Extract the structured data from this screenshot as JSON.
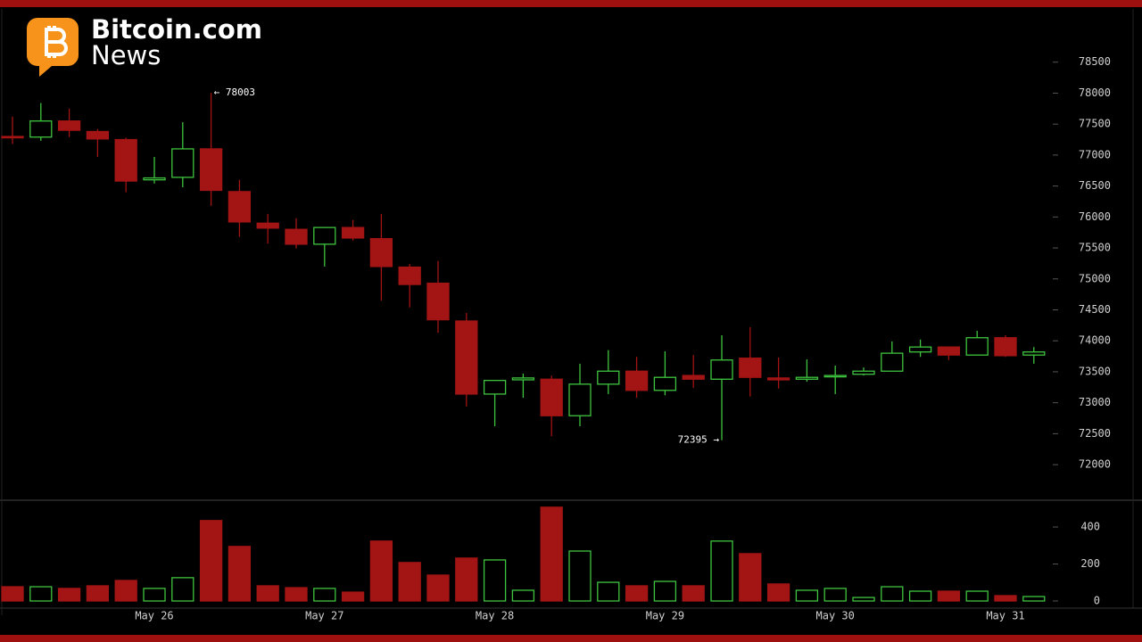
{
  "header": {
    "brand": "Bitcoin.com",
    "sub": "News"
  },
  "chart_data": {
    "type": "candlestick",
    "categories": [
      null,
      null,
      null,
      null,
      null,
      "May 26",
      null,
      null,
      null,
      null,
      null,
      "May 27",
      null,
      null,
      null,
      null,
      null,
      "May 28",
      null,
      null,
      null,
      null,
      null,
      "May 29",
      null,
      null,
      null,
      null,
      null,
      "May 30",
      null,
      null,
      null,
      null,
      null,
      "May 31",
      null
    ],
    "open": [
      77300,
      77290,
      77550,
      77380,
      77250,
      76600,
      76640,
      77100,
      76410,
      75900,
      75800,
      75560,
      75830,
      75650,
      75190,
      74930,
      74320,
      73140,
      73370,
      73380,
      72790,
      73300,
      73510,
      73200,
      73440,
      73380,
      73720,
      73400,
      73380,
      73430,
      73460,
      73510,
      73820,
      73900,
      73770,
      74050,
      73770
    ],
    "high": [
      77620,
      77840,
      77750,
      77420,
      77280,
      76970,
      77530,
      78003,
      76600,
      76050,
      75980,
      75830,
      75950,
      76050,
      75240,
      75290,
      74450,
      73360,
      73470,
      73440,
      73630,
      73850,
      73740,
      73830,
      73770,
      74090,
      74220,
      73730,
      73700,
      73600,
      73570,
      73990,
      74020,
      73900,
      74160,
      74090,
      73900
    ],
    "low": [
      77180,
      77230,
      77290,
      76970,
      76400,
      76540,
      76480,
      76180,
      75680,
      75570,
      75490,
      75200,
      75620,
      74650,
      74540,
      74130,
      72940,
      72620,
      73080,
      72460,
      72620,
      73140,
      73080,
      73120,
      73240,
      72395,
      73100,
      73230,
      73340,
      73140,
      73440,
      73510,
      73740,
      73690,
      73770,
      73740,
      73630
    ],
    "close": [
      77280,
      77550,
      77400,
      77260,
      76580,
      76630,
      77100,
      76430,
      75920,
      75820,
      75560,
      75830,
      75660,
      75200,
      74910,
      74340,
      73140,
      73360,
      73400,
      72790,
      73300,
      73510,
      73200,
      73410,
      73380,
      73690,
      73410,
      73370,
      73410,
      73440,
      73510,
      73800,
      73900,
      73770,
      74050,
      73760,
      73820
    ],
    "volume": [
      77,
      77,
      68,
      82,
      111,
      68,
      126,
      435,
      295,
      82,
      72,
      68,
      48,
      324,
      208,
      140,
      232,
      222,
      58,
      507,
      270,
      101,
      82,
      106,
      82,
      324,
      256,
      92,
      58,
      68,
      19,
      77,
      53,
      53,
      53,
      29,
      24
    ],
    "up_color": "#3ec43e",
    "down_color": "#a31414",
    "ylim": [
      71440,
      79360
    ],
    "yticks": [
      72000,
      72500,
      73000,
      73500,
      74000,
      74500,
      75000,
      75500,
      76000,
      76500,
      77000,
      77500,
      78000,
      78500
    ],
    "volume_ylim": [
      0,
      540
    ],
    "volume_yticks": [
      0,
      200,
      400
    ],
    "annotations": [
      {
        "label": "← 78003"
      },
      {
        "label": "72395 →"
      }
    ]
  }
}
